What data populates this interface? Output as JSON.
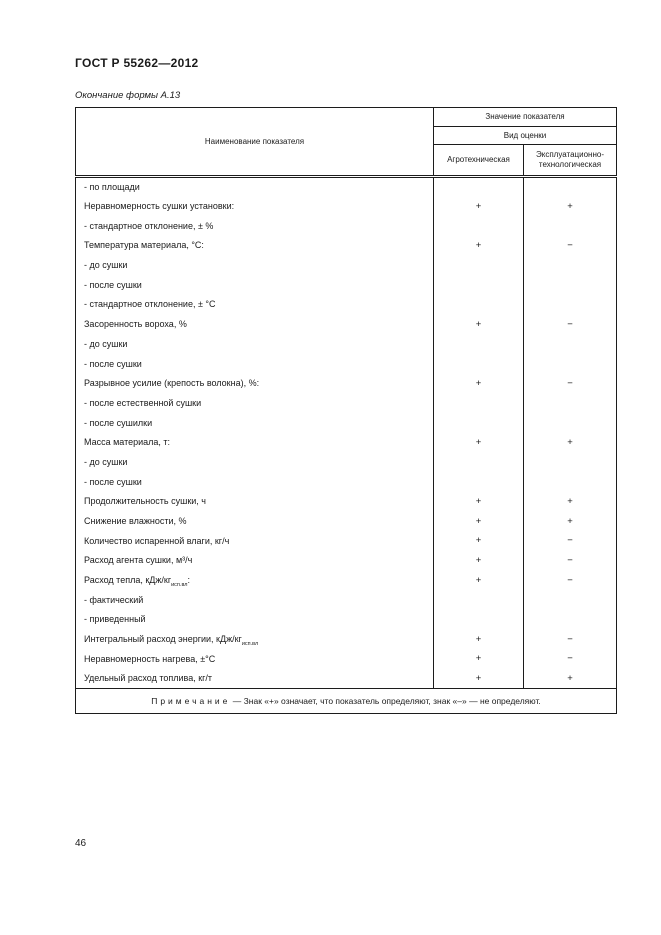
{
  "page": {
    "doc_number": "ГОСТ Р 55262—2012",
    "form_caption": "Окончание формы А.13",
    "page_number": "46"
  },
  "table": {
    "header": {
      "name_col": "Наименование показателя",
      "value_group": "Значение показателя",
      "evaluation_group": "Вид оценки",
      "agro_col": "Агротехническая",
      "exploit_col": "Эксплуатационно-технологическая"
    },
    "rows": [
      {
        "label": "- по площади",
        "agro": "",
        "exploit": ""
      },
      {
        "label": "Неравномерность сушки установки:",
        "agro": "+",
        "exploit": "+"
      },
      {
        "label": "- стандартное отклонение, ± %",
        "agro": "",
        "exploit": ""
      },
      {
        "label": "Температура материала, °С:",
        "agro": "+",
        "exploit": "−"
      },
      {
        "label": "- до сушки",
        "agro": "",
        "exploit": ""
      },
      {
        "label": "- после сушки",
        "agro": "",
        "exploit": ""
      },
      {
        "label": "- стандартное отклонение, ± °С",
        "agro": "",
        "exploit": ""
      },
      {
        "label": "Засоренность вороха, %",
        "agro": "+",
        "exploit": "−"
      },
      {
        "label": "- до сушки",
        "agro": "",
        "exploit": ""
      },
      {
        "label": "- после сушки",
        "agro": "",
        "exploit": ""
      },
      {
        "label": "Разрывное усилие (крепость волокна), %:",
        "agro": "+",
        "exploit": "−"
      },
      {
        "label": "- после естественной сушки",
        "agro": "",
        "exploit": ""
      },
      {
        "label": "- после сушилки",
        "agro": "",
        "exploit": ""
      },
      {
        "label": "Масса материала, т:",
        "agro": "+",
        "exploit": "+"
      },
      {
        "label": "- до сушки",
        "agro": "",
        "exploit": ""
      },
      {
        "label": "- после сушки",
        "agro": "",
        "exploit": ""
      },
      {
        "label": "Продолжительность сушки, ч",
        "agro": "+",
        "exploit": "+"
      },
      {
        "label": "Снижение влажности, %",
        "agro": "+",
        "exploit": "+"
      },
      {
        "label": "Количество испаренной влаги, кг/ч",
        "agro": "+",
        "exploit": "−"
      },
      {
        "label": "Расход агента сушки, м³/ч",
        "agro": "+",
        "exploit": "−"
      },
      {
        "label": "Расход тепла, кДж/кг",
        "sub": "исп.вл",
        "suffix": ":",
        "agro": "+",
        "exploit": "−"
      },
      {
        "label": "- фактический",
        "agro": "",
        "exploit": ""
      },
      {
        "label": "- приведенный",
        "agro": "",
        "exploit": ""
      },
      {
        "label": "Интегральный расход энергии, кДж/кг",
        "sub": "исп.вл",
        "agro": "+",
        "exploit": "−"
      },
      {
        "label": "Неравномерность нагрева, ±°С",
        "agro": "+",
        "exploit": "−"
      },
      {
        "label": "Удельный расход топлива, кг/т",
        "agro": "+",
        "exploit": "+"
      }
    ],
    "note": {
      "label": "Примечание",
      "text": "— Знак «+» означает, что показатель определяют, знак «–» — не определяют."
    }
  }
}
